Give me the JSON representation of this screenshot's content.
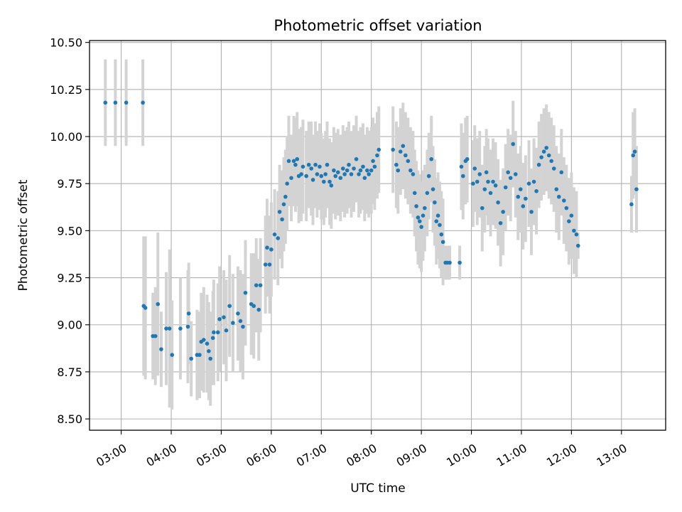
{
  "chart_data": {
    "type": "scatter",
    "title": "Photometric offset variation",
    "xlabel": "UTC time",
    "ylabel": "Photometric offset",
    "xlim": [
      "02:22",
      "13:53"
    ],
    "ylim": [
      8.44,
      10.51
    ],
    "x_ticks": [
      "03:00",
      "04:00",
      "05:00",
      "06:00",
      "07:00",
      "08:00",
      "09:00",
      "10:00",
      "11:00",
      "12:00",
      "13:00"
    ],
    "y_ticks": [
      "8.50",
      "8.75",
      "9.00",
      "9.25",
      "9.50",
      "9.75",
      "10.00",
      "10.25",
      "10.50"
    ],
    "grid": true,
    "colors": {
      "points": "#1f77b4",
      "errorbars": "#d3d3d3",
      "grid": "#b0b0b0"
    },
    "series": [
      {
        "marker": "point",
        "errorbar": "vertical",
        "points": [
          {
            "x": "02:41",
            "y": 10.18,
            "err": 0.23
          },
          {
            "x": "02:53",
            "y": 10.18,
            "err": 0.23
          },
          {
            "x": "03:06",
            "y": 10.18,
            "err": 0.23
          },
          {
            "x": "03:26",
            "y": 10.18,
            "err": 0.23
          },
          {
            "x": "03:27",
            "y": 9.1,
            "err": 0.37
          },
          {
            "x": "03:29",
            "y": 9.09,
            "err": 0.38
          },
          {
            "x": "03:38",
            "y": 8.94,
            "err": 0.23
          },
          {
            "x": "03:41",
            "y": 8.94,
            "err": 0.26
          },
          {
            "x": "03:44",
            "y": 9.11,
            "err": 0.38
          },
          {
            "x": "03:48",
            "y": 8.87,
            "err": 0.2
          },
          {
            "x": "03:54",
            "y": 8.98,
            "err": 0.3
          },
          {
            "x": "03:58",
            "y": 8.98,
            "err": 0.42
          },
          {
            "x": "04:01",
            "y": 8.84,
            "err": 0.29
          },
          {
            "x": "04:11",
            "y": 8.98,
            "err": 0.27
          },
          {
            "x": "04:20",
            "y": 8.99,
            "err": 0.3
          },
          {
            "x": "04:21",
            "y": 9.06,
            "err": 0.27
          },
          {
            "x": "04:24",
            "y": 8.82,
            "err": 0.2
          },
          {
            "x": "04:31",
            "y": 8.84,
            "err": 0.24
          },
          {
            "x": "04:34",
            "y": 8.84,
            "err": 0.23
          },
          {
            "x": "04:36",
            "y": 8.91,
            "err": 0.26
          },
          {
            "x": "04:39",
            "y": 8.92,
            "err": 0.28
          },
          {
            "x": "04:43",
            "y": 8.9,
            "err": 0.26
          },
          {
            "x": "04:45",
            "y": 8.86,
            "err": 0.26
          },
          {
            "x": "04:47",
            "y": 8.82,
            "err": 0.25
          },
          {
            "x": "04:50",
            "y": 8.93,
            "err": 0.25
          },
          {
            "x": "04:51",
            "y": 8.96,
            "err": 0.28
          },
          {
            "x": "04:56",
            "y": 8.96,
            "err": 0.26
          },
          {
            "x": "04:58",
            "y": 9.03,
            "err": 0.28
          },
          {
            "x": "05:03",
            "y": 9.04,
            "err": 0.25
          },
          {
            "x": "05:06",
            "y": 8.97,
            "err": 0.27
          },
          {
            "x": "05:10",
            "y": 9.1,
            "err": 0.27
          },
          {
            "x": "05:14",
            "y": 9.01,
            "err": 0.26
          },
          {
            "x": "05:20",
            "y": 9.06,
            "err": 0.25
          },
          {
            "x": "05:23",
            "y": 9.02,
            "err": 0.27
          },
          {
            "x": "05:26",
            "y": 8.99,
            "err": 0.28
          },
          {
            "x": "05:29",
            "y": 9.17,
            "err": 0.28
          },
          {
            "x": "05:36",
            "y": 9.11,
            "err": 0.27
          },
          {
            "x": "05:39",
            "y": 9.1,
            "err": 0.28
          },
          {
            "x": "05:42",
            "y": 9.21,
            "err": 0.25
          },
          {
            "x": "05:45",
            "y": 9.08,
            "err": 0.27
          },
          {
            "x": "05:47",
            "y": 9.21,
            "err": 0.25
          },
          {
            "x": "05:53",
            "y": 9.32,
            "err": 0.26
          },
          {
            "x": "05:55",
            "y": 9.41,
            "err": 0.26
          },
          {
            "x": "05:58",
            "y": 9.32,
            "err": 0.26
          },
          {
            "x": "06:00",
            "y": 9.4,
            "err": 0.25
          },
          {
            "x": "06:04",
            "y": 9.48,
            "err": 0.24
          },
          {
            "x": "06:08",
            "y": 9.46,
            "err": 0.25
          },
          {
            "x": "06:10",
            "y": 9.6,
            "err": 0.25
          },
          {
            "x": "06:13",
            "y": 9.56,
            "err": 0.26
          },
          {
            "x": "06:15",
            "y": 9.64,
            "err": 0.25
          },
          {
            "x": "06:17",
            "y": 9.68,
            "err": 0.25
          },
          {
            "x": "06:19",
            "y": 9.75,
            "err": 0.25
          },
          {
            "x": "06:21",
            "y": 9.87,
            "err": 0.24
          },
          {
            "x": "06:24",
            "y": 9.78,
            "err": 0.23
          },
          {
            "x": "06:27",
            "y": 9.87,
            "err": 0.24
          },
          {
            "x": "06:29",
            "y": 9.85,
            "err": 0.25
          },
          {
            "x": "06:31",
            "y": 9.88,
            "err": 0.25
          },
          {
            "x": "06:33",
            "y": 9.79,
            "err": 0.25
          },
          {
            "x": "06:36",
            "y": 9.8,
            "err": 0.25
          },
          {
            "x": "06:38",
            "y": 9.84,
            "err": 0.25
          },
          {
            "x": "06:42",
            "y": 9.79,
            "err": 0.24
          },
          {
            "x": "06:45",
            "y": 9.85,
            "err": 0.23
          },
          {
            "x": "06:48",
            "y": 9.83,
            "err": 0.25
          },
          {
            "x": "06:50",
            "y": 9.77,
            "err": 0.24
          },
          {
            "x": "06:53",
            "y": 9.85,
            "err": 0.23
          },
          {
            "x": "06:55",
            "y": 9.8,
            "err": 0.23
          },
          {
            "x": "06:58",
            "y": 9.84,
            "err": 0.23
          },
          {
            "x": "07:00",
            "y": 9.79,
            "err": 0.23
          },
          {
            "x": "07:03",
            "y": 9.76,
            "err": 0.23
          },
          {
            "x": "07:05",
            "y": 9.8,
            "err": 0.23
          },
          {
            "x": "07:07",
            "y": 9.85,
            "err": 0.23
          },
          {
            "x": "07:10",
            "y": 9.76,
            "err": 0.23
          },
          {
            "x": "07:12",
            "y": 9.74,
            "err": 0.23
          },
          {
            "x": "07:15",
            "y": 9.82,
            "err": 0.23
          },
          {
            "x": "07:17",
            "y": 9.79,
            "err": 0.23
          },
          {
            "x": "07:20",
            "y": 9.81,
            "err": 0.23
          },
          {
            "x": "07:23",
            "y": 9.78,
            "err": 0.23
          },
          {
            "x": "07:26",
            "y": 9.83,
            "err": 0.23
          },
          {
            "x": "07:28",
            "y": 9.8,
            "err": 0.23
          },
          {
            "x": "07:31",
            "y": 9.82,
            "err": 0.23
          },
          {
            "x": "07:33",
            "y": 9.85,
            "err": 0.23
          },
          {
            "x": "07:36",
            "y": 9.8,
            "err": 0.23
          },
          {
            "x": "07:39",
            "y": 9.83,
            "err": 0.23
          },
          {
            "x": "07:42",
            "y": 9.88,
            "err": 0.23
          },
          {
            "x": "07:45",
            "y": 9.8,
            "err": 0.23
          },
          {
            "x": "07:47",
            "y": 9.82,
            "err": 0.23
          },
          {
            "x": "07:50",
            "y": 9.84,
            "err": 0.23
          },
          {
            "x": "07:52",
            "y": 9.78,
            "err": 0.23
          },
          {
            "x": "07:55",
            "y": 9.82,
            "err": 0.23
          },
          {
            "x": "07:57",
            "y": 9.8,
            "err": 0.23
          },
          {
            "x": "08:00",
            "y": 9.82,
            "err": 0.23
          },
          {
            "x": "08:02",
            "y": 9.87,
            "err": 0.23
          },
          {
            "x": "08:04",
            "y": 9.84,
            "err": 0.23
          },
          {
            "x": "08:07",
            "y": 9.9,
            "err": 0.23
          },
          {
            "x": "08:09",
            "y": 9.93,
            "err": 0.23
          },
          {
            "x": "08:26",
            "y": 9.93,
            "err": 0.23
          },
          {
            "x": "08:30",
            "y": 9.85,
            "err": 0.23
          },
          {
            "x": "08:32",
            "y": 9.82,
            "err": 0.23
          },
          {
            "x": "08:35",
            "y": 9.92,
            "err": 0.23
          },
          {
            "x": "08:38",
            "y": 9.95,
            "err": 0.23
          },
          {
            "x": "08:41",
            "y": 9.9,
            "err": 0.23
          },
          {
            "x": "08:44",
            "y": 9.87,
            "err": 0.23
          },
          {
            "x": "08:47",
            "y": 9.82,
            "err": 0.23
          },
          {
            "x": "08:50",
            "y": 9.8,
            "err": 0.23
          },
          {
            "x": "08:52",
            "y": 9.7,
            "err": 0.23
          },
          {
            "x": "08:54",
            "y": 9.63,
            "err": 0.24
          },
          {
            "x": "08:56",
            "y": 9.57,
            "err": 0.25
          },
          {
            "x": "08:58",
            "y": 9.55,
            "err": 0.25
          },
          {
            "x": "09:00",
            "y": 9.52,
            "err": 0.24
          },
          {
            "x": "09:02",
            "y": 9.58,
            "err": 0.24
          },
          {
            "x": "09:04",
            "y": 9.62,
            "err": 0.23
          },
          {
            "x": "09:07",
            "y": 9.7,
            "err": 0.23
          },
          {
            "x": "09:09",
            "y": 9.79,
            "err": 0.23
          },
          {
            "x": "09:12",
            "y": 9.88,
            "err": 0.23
          },
          {
            "x": "09:14",
            "y": 9.72,
            "err": 0.23
          },
          {
            "x": "09:16",
            "y": 9.65,
            "err": 0.23
          },
          {
            "x": "09:18",
            "y": 9.55,
            "err": 0.23
          },
          {
            "x": "09:20",
            "y": 9.58,
            "err": 0.23
          },
          {
            "x": "09:22",
            "y": 9.53,
            "err": 0.23
          },
          {
            "x": "09:24",
            "y": 9.48,
            "err": 0.23
          },
          {
            "x": "09:26",
            "y": 9.44,
            "err": 0.23
          },
          {
            "x": "09:29",
            "y": 9.33,
            "err": 0.09
          },
          {
            "x": "09:31",
            "y": 9.33,
            "err": 0.09
          },
          {
            "x": "09:34",
            "y": 9.33,
            "err": 0.09
          },
          {
            "x": "09:46",
            "y": 9.33,
            "err": 0.09
          },
          {
            "x": "09:48",
            "y": 9.84,
            "err": 0.23
          },
          {
            "x": "09:50",
            "y": 9.79,
            "err": 0.23
          },
          {
            "x": "09:53",
            "y": 9.87,
            "err": 0.23
          },
          {
            "x": "09:55",
            "y": 9.88,
            "err": 0.23
          },
          {
            "x": "10:02",
            "y": 9.75,
            "err": 0.23
          },
          {
            "x": "10:04",
            "y": 9.83,
            "err": 0.23
          },
          {
            "x": "10:07",
            "y": 9.76,
            "err": 0.23
          },
          {
            "x": "10:10",
            "y": 9.8,
            "err": 0.23
          },
          {
            "x": "10:13",
            "y": 9.62,
            "err": 0.23
          },
          {
            "x": "10:16",
            "y": 9.72,
            "err": 0.23
          },
          {
            "x": "10:18",
            "y": 9.81,
            "err": 0.23
          },
          {
            "x": "10:20",
            "y": 9.76,
            "err": 0.23
          },
          {
            "x": "10:23",
            "y": 9.7,
            "err": 0.23
          },
          {
            "x": "10:26",
            "y": 9.76,
            "err": 0.23
          },
          {
            "x": "10:29",
            "y": 9.74,
            "err": 0.23
          },
          {
            "x": "10:32",
            "y": 9.65,
            "err": 0.23
          },
          {
            "x": "10:35",
            "y": 9.54,
            "err": 0.23
          },
          {
            "x": "10:38",
            "y": 9.6,
            "err": 0.23
          },
          {
            "x": "10:41",
            "y": 9.73,
            "err": 0.23
          },
          {
            "x": "10:44",
            "y": 9.81,
            "err": 0.23
          },
          {
            "x": "10:47",
            "y": 9.78,
            "err": 0.23
          },
          {
            "x": "10:50",
            "y": 9.96,
            "err": 0.23
          },
          {
            "x": "10:53",
            "y": 9.8,
            "err": 0.23
          },
          {
            "x": "10:56",
            "y": 9.68,
            "err": 0.23
          },
          {
            "x": "10:59",
            "y": 9.72,
            "err": 0.23
          },
          {
            "x": "11:02",
            "y": 9.63,
            "err": 0.23
          },
          {
            "x": "11:05",
            "y": 9.67,
            "err": 0.23
          },
          {
            "x": "11:09",
            "y": 9.75,
            "err": 0.23
          },
          {
            "x": "11:12",
            "y": 9.6,
            "err": 0.23
          },
          {
            "x": "11:15",
            "y": 9.76,
            "err": 0.23
          },
          {
            "x": "11:18",
            "y": 9.71,
            "err": 0.23
          },
          {
            "x": "11:21",
            "y": 9.85,
            "err": 0.23
          },
          {
            "x": "11:24",
            "y": 9.89,
            "err": 0.23
          },
          {
            "x": "11:27",
            "y": 9.92,
            "err": 0.23
          },
          {
            "x": "11:30",
            "y": 9.94,
            "err": 0.23
          },
          {
            "x": "11:33",
            "y": 9.9,
            "err": 0.23
          },
          {
            "x": "11:36",
            "y": 9.87,
            "err": 0.23
          },
          {
            "x": "11:39",
            "y": 9.83,
            "err": 0.23
          },
          {
            "x": "11:42",
            "y": 9.72,
            "err": 0.23
          },
          {
            "x": "11:45",
            "y": 9.68,
            "err": 0.23
          },
          {
            "x": "11:48",
            "y": 9.81,
            "err": 0.23
          },
          {
            "x": "11:51",
            "y": 9.66,
            "err": 0.23
          },
          {
            "x": "11:54",
            "y": 9.62,
            "err": 0.23
          },
          {
            "x": "11:57",
            "y": 9.55,
            "err": 0.23
          },
          {
            "x": "12:00",
            "y": 9.58,
            "err": 0.23
          },
          {
            "x": "12:03",
            "y": 9.5,
            "err": 0.23
          },
          {
            "x": "12:06",
            "y": 9.48,
            "err": 0.23
          },
          {
            "x": "12:08",
            "y": 9.42,
            "err": 0.07
          },
          {
            "x": "13:12",
            "y": 9.64,
            "err": 0.15
          },
          {
            "x": "13:14",
            "y": 9.9,
            "err": 0.23
          },
          {
            "x": "13:16",
            "y": 9.92,
            "err": 0.23
          },
          {
            "x": "13:18",
            "y": 9.72,
            "err": 0.23
          }
        ]
      }
    ]
  }
}
